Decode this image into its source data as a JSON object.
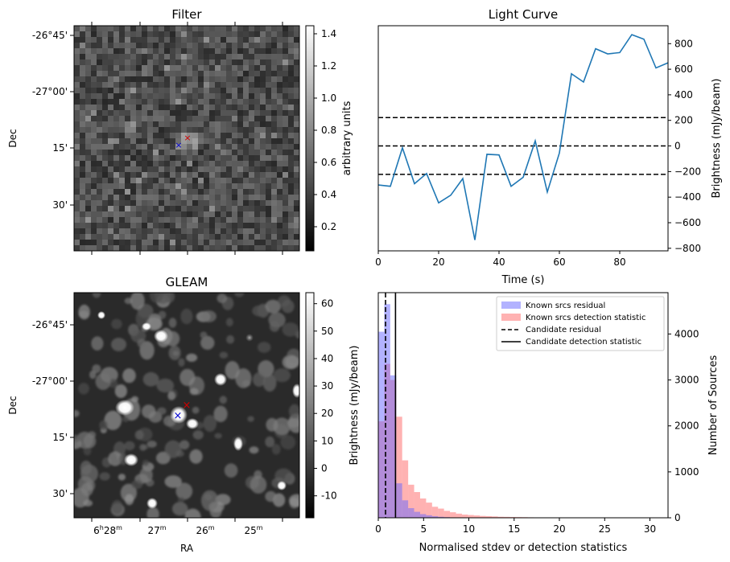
{
  "panels": {
    "filter": {
      "title": "Filter",
      "ylabel": "Dec",
      "dec_ticks": [
        "-26°45'",
        "-27°00'",
        "15'",
        "30'"
      ],
      "colorbar": {
        "label": "arbitrary units",
        "ticks": [
          "0.2",
          "0.4",
          "0.6",
          "0.8",
          "1.0",
          "1.2",
          "1.4"
        ],
        "range": [
          0.05,
          1.45
        ]
      }
    },
    "gleam": {
      "title": "GLEAM",
      "ylabel": "Dec",
      "xlabel": "RA",
      "dec_ticks": [
        "-26°45'",
        "-27°00'",
        "15'",
        "30'"
      ],
      "ra_ticks": [
        {
          "main": "6",
          "sup1": "h",
          "mid": "28",
          "sup2": "m"
        },
        {
          "main": "27",
          "sup1": "m",
          "mid": "",
          "sup2": ""
        },
        {
          "main": "26",
          "sup1": "m",
          "mid": "",
          "sup2": ""
        },
        {
          "main": "25",
          "sup1": "m",
          "mid": "",
          "sup2": ""
        }
      ],
      "colorbar": {
        "label": "Brightness (mJy/beam)",
        "ticks": [
          "-10",
          "0",
          "10",
          "20",
          "30",
          "40",
          "50",
          "60"
        ],
        "range": [
          -18,
          64
        ]
      }
    }
  },
  "chart_data": [
    {
      "type": "line",
      "title": "Light Curve",
      "xlabel": "Time (s)",
      "ylabel": "Brightness (mJy/beam)",
      "xlim": [
        0,
        96
      ],
      "ylim": [
        -820,
        940
      ],
      "xticks": [
        0,
        20,
        40,
        60,
        80
      ],
      "yticks": [
        -800,
        -600,
        -400,
        -200,
        0,
        200,
        400,
        600,
        800
      ],
      "x": [
        0,
        4,
        8,
        12,
        16,
        20,
        24,
        28,
        32,
        36,
        40,
        44,
        48,
        52,
        56,
        60,
        64,
        68,
        72,
        76,
        80,
        84,
        88,
        92,
        96
      ],
      "y": [
        -305,
        -315,
        -15,
        -295,
        -215,
        -445,
        -385,
        -255,
        -735,
        -65,
        -70,
        -315,
        -245,
        40,
        -360,
        -55,
        565,
        500,
        760,
        720,
        730,
        870,
        835,
        610,
        650
      ],
      "hlines": [
        222,
        0,
        -222
      ],
      "color": "#1f77b4"
    },
    {
      "type": "bar",
      "subtype": "histogram",
      "xlabel": "Normalised stdev or detection statistics",
      "ylabel": "Number of Sources",
      "xlim": [
        0,
        32
      ],
      "ylim": [
        0,
        4900
      ],
      "xticks": [
        0,
        5,
        10,
        15,
        20,
        25,
        30
      ],
      "yticks": [
        0,
        1000,
        2000,
        3000,
        4000
      ],
      "bin_width": 0.66,
      "series": [
        {
          "name": "Known srcs residual",
          "color": "#6666ff",
          "values": [
            4050,
            4650,
            3100,
            750,
            380,
            210,
            130,
            80,
            55,
            35,
            22,
            14,
            9,
            6,
            4,
            3,
            2,
            1
          ]
        },
        {
          "name": "Known srcs detection statistic",
          "color": "#ff6666",
          "values": [
            2100,
            3350,
            3000,
            2200,
            1250,
            720,
            560,
            420,
            330,
            240,
            200,
            150,
            120,
            90,
            70,
            60,
            50,
            40,
            35,
            30,
            22,
            20,
            17,
            15,
            13,
            10,
            8,
            8,
            6,
            5,
            4,
            3,
            3,
            2,
            2,
            2,
            1,
            1
          ]
        }
      ],
      "vlines": [
        {
          "name": "Candidate residual",
          "x": 0.8,
          "style": "dashed"
        },
        {
          "name": "Candidate detection statistic",
          "x": 1.9,
          "style": "solid"
        }
      ]
    }
  ]
}
